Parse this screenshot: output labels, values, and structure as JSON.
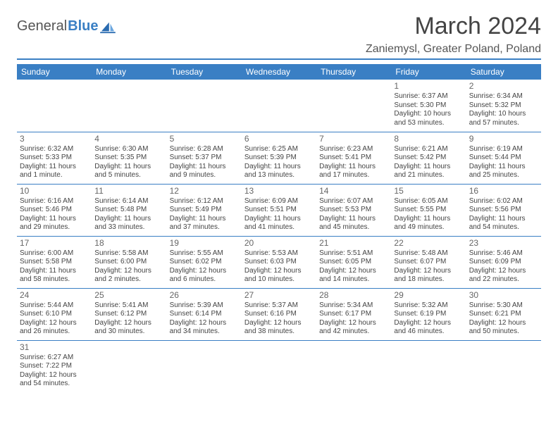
{
  "logo": {
    "general": "General",
    "blue": "Blue"
  },
  "title": "March 2024",
  "location": "Zaniemysl, Greater Poland, Poland",
  "colors": {
    "header_bg": "#3a7fc4",
    "header_text": "#ffffff",
    "border": "#3a7fc4",
    "text": "#444444",
    "logo_gray": "#555555",
    "logo_blue": "#3a7fc4"
  },
  "weekdays": [
    "Sunday",
    "Monday",
    "Tuesday",
    "Wednesday",
    "Thursday",
    "Friday",
    "Saturday"
  ],
  "weeks": [
    [
      null,
      null,
      null,
      null,
      null,
      {
        "n": "1",
        "sr": "Sunrise: 6:37 AM",
        "ss": "Sunset: 5:30 PM",
        "dl": "Daylight: 10 hours and 53 minutes."
      },
      {
        "n": "2",
        "sr": "Sunrise: 6:34 AM",
        "ss": "Sunset: 5:32 PM",
        "dl": "Daylight: 10 hours and 57 minutes."
      }
    ],
    [
      {
        "n": "3",
        "sr": "Sunrise: 6:32 AM",
        "ss": "Sunset: 5:33 PM",
        "dl": "Daylight: 11 hours and 1 minute."
      },
      {
        "n": "4",
        "sr": "Sunrise: 6:30 AM",
        "ss": "Sunset: 5:35 PM",
        "dl": "Daylight: 11 hours and 5 minutes."
      },
      {
        "n": "5",
        "sr": "Sunrise: 6:28 AM",
        "ss": "Sunset: 5:37 PM",
        "dl": "Daylight: 11 hours and 9 minutes."
      },
      {
        "n": "6",
        "sr": "Sunrise: 6:25 AM",
        "ss": "Sunset: 5:39 PM",
        "dl": "Daylight: 11 hours and 13 minutes."
      },
      {
        "n": "7",
        "sr": "Sunrise: 6:23 AM",
        "ss": "Sunset: 5:41 PM",
        "dl": "Daylight: 11 hours and 17 minutes."
      },
      {
        "n": "8",
        "sr": "Sunrise: 6:21 AM",
        "ss": "Sunset: 5:42 PM",
        "dl": "Daylight: 11 hours and 21 minutes."
      },
      {
        "n": "9",
        "sr": "Sunrise: 6:19 AM",
        "ss": "Sunset: 5:44 PM",
        "dl": "Daylight: 11 hours and 25 minutes."
      }
    ],
    [
      {
        "n": "10",
        "sr": "Sunrise: 6:16 AM",
        "ss": "Sunset: 5:46 PM",
        "dl": "Daylight: 11 hours and 29 minutes."
      },
      {
        "n": "11",
        "sr": "Sunrise: 6:14 AM",
        "ss": "Sunset: 5:48 PM",
        "dl": "Daylight: 11 hours and 33 minutes."
      },
      {
        "n": "12",
        "sr": "Sunrise: 6:12 AM",
        "ss": "Sunset: 5:49 PM",
        "dl": "Daylight: 11 hours and 37 minutes."
      },
      {
        "n": "13",
        "sr": "Sunrise: 6:09 AM",
        "ss": "Sunset: 5:51 PM",
        "dl": "Daylight: 11 hours and 41 minutes."
      },
      {
        "n": "14",
        "sr": "Sunrise: 6:07 AM",
        "ss": "Sunset: 5:53 PM",
        "dl": "Daylight: 11 hours and 45 minutes."
      },
      {
        "n": "15",
        "sr": "Sunrise: 6:05 AM",
        "ss": "Sunset: 5:55 PM",
        "dl": "Daylight: 11 hours and 49 minutes."
      },
      {
        "n": "16",
        "sr": "Sunrise: 6:02 AM",
        "ss": "Sunset: 5:56 PM",
        "dl": "Daylight: 11 hours and 54 minutes."
      }
    ],
    [
      {
        "n": "17",
        "sr": "Sunrise: 6:00 AM",
        "ss": "Sunset: 5:58 PM",
        "dl": "Daylight: 11 hours and 58 minutes."
      },
      {
        "n": "18",
        "sr": "Sunrise: 5:58 AM",
        "ss": "Sunset: 6:00 PM",
        "dl": "Daylight: 12 hours and 2 minutes."
      },
      {
        "n": "19",
        "sr": "Sunrise: 5:55 AM",
        "ss": "Sunset: 6:02 PM",
        "dl": "Daylight: 12 hours and 6 minutes."
      },
      {
        "n": "20",
        "sr": "Sunrise: 5:53 AM",
        "ss": "Sunset: 6:03 PM",
        "dl": "Daylight: 12 hours and 10 minutes."
      },
      {
        "n": "21",
        "sr": "Sunrise: 5:51 AM",
        "ss": "Sunset: 6:05 PM",
        "dl": "Daylight: 12 hours and 14 minutes."
      },
      {
        "n": "22",
        "sr": "Sunrise: 5:48 AM",
        "ss": "Sunset: 6:07 PM",
        "dl": "Daylight: 12 hours and 18 minutes."
      },
      {
        "n": "23",
        "sr": "Sunrise: 5:46 AM",
        "ss": "Sunset: 6:09 PM",
        "dl": "Daylight: 12 hours and 22 minutes."
      }
    ],
    [
      {
        "n": "24",
        "sr": "Sunrise: 5:44 AM",
        "ss": "Sunset: 6:10 PM",
        "dl": "Daylight: 12 hours and 26 minutes."
      },
      {
        "n": "25",
        "sr": "Sunrise: 5:41 AM",
        "ss": "Sunset: 6:12 PM",
        "dl": "Daylight: 12 hours and 30 minutes."
      },
      {
        "n": "26",
        "sr": "Sunrise: 5:39 AM",
        "ss": "Sunset: 6:14 PM",
        "dl": "Daylight: 12 hours and 34 minutes."
      },
      {
        "n": "27",
        "sr": "Sunrise: 5:37 AM",
        "ss": "Sunset: 6:16 PM",
        "dl": "Daylight: 12 hours and 38 minutes."
      },
      {
        "n": "28",
        "sr": "Sunrise: 5:34 AM",
        "ss": "Sunset: 6:17 PM",
        "dl": "Daylight: 12 hours and 42 minutes."
      },
      {
        "n": "29",
        "sr": "Sunrise: 5:32 AM",
        "ss": "Sunset: 6:19 PM",
        "dl": "Daylight: 12 hours and 46 minutes."
      },
      {
        "n": "30",
        "sr": "Sunrise: 5:30 AM",
        "ss": "Sunset: 6:21 PM",
        "dl": "Daylight: 12 hours and 50 minutes."
      }
    ],
    [
      {
        "n": "31",
        "sr": "Sunrise: 6:27 AM",
        "ss": "Sunset: 7:22 PM",
        "dl": "Daylight: 12 hours and 54 minutes."
      },
      null,
      null,
      null,
      null,
      null,
      null
    ]
  ]
}
